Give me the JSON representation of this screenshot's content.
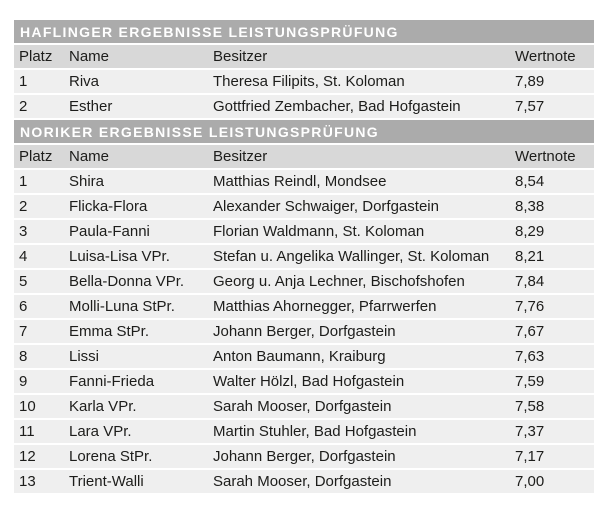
{
  "colors": {
    "section_header_bg": "#ababab",
    "section_header_text": "#ffffff",
    "column_header_bg": "#d8d8d8",
    "row_bg": "#efefef",
    "text": "#1d1d1b",
    "page_bg": "#ffffff"
  },
  "sections": [
    {
      "title": "HAFLINGER ERGEBNISSE LEISTUNGSPRÜFUNG",
      "columns": {
        "platz": "Platz",
        "name": "Name",
        "besitzer": "Besitzer",
        "wertnote": "Wertnote"
      },
      "rows": [
        {
          "platz": "1",
          "name": "Riva",
          "besitzer": "Theresa Filipits, St. Koloman",
          "wertnote": "7,89"
        },
        {
          "platz": "2",
          "name": "Esther",
          "besitzer": "Gottfried Zembacher, Bad Hofgastein",
          "wertnote": "7,57"
        }
      ]
    },
    {
      "title": "NORIKER ERGEBNISSE LEISTUNGSPRÜFUNG",
      "columns": {
        "platz": "Platz",
        "name": "Name",
        "besitzer": "Besitzer",
        "wertnote": "Wertnote"
      },
      "rows": [
        {
          "platz": "1",
          "name": "Shira",
          "besitzer": "Matthias Reindl, Mondsee",
          "wertnote": "8,54"
        },
        {
          "platz": "2",
          "name": "Flicka-Flora",
          "besitzer": "Alexander Schwaiger, Dorfgastein",
          "wertnote": "8,38"
        },
        {
          "platz": "3",
          "name": "Paula-Fanni",
          "besitzer": "Florian Waldmann, St. Koloman",
          "wertnote": "8,29"
        },
        {
          "platz": "4",
          "name": "Luisa-Lisa VPr.",
          "besitzer": "Stefan u. Angelika Wallinger, St. Koloman",
          "wertnote": "8,21"
        },
        {
          "platz": "5",
          "name": "Bella-Donna VPr.",
          "besitzer": "Georg u. Anja Lechner, Bischofshofen",
          "wertnote": "7,84"
        },
        {
          "platz": "6",
          "name": "Molli-Luna StPr.",
          "besitzer": "Matthias Ahornegger, Pfarrwerfen",
          "wertnote": "7,76"
        },
        {
          "platz": "7",
          "name": "Emma StPr.",
          "besitzer": "Johann Berger, Dorfgastein",
          "wertnote": "7,67"
        },
        {
          "platz": "8",
          "name": "Lissi",
          "besitzer": "Anton Baumann, Kraiburg",
          "wertnote": "7,63"
        },
        {
          "platz": "9",
          "name": "Fanni-Frieda",
          "besitzer": "Walter Hölzl, Bad Hofgastein",
          "wertnote": "7,59"
        },
        {
          "platz": "10",
          "name": "Karla VPr.",
          "besitzer": "Sarah Mooser, Dorfgastein",
          "wertnote": "7,58"
        },
        {
          "platz": "11",
          "name": "Lara VPr.",
          "besitzer": "Martin Stuhler, Bad Hofgastein",
          "wertnote": "7,37"
        },
        {
          "platz": "12",
          "name": "Lorena StPr.",
          "besitzer": "Johann Berger, Dorfgastein",
          "wertnote": "7,17"
        },
        {
          "platz": "13",
          "name": "Trient-Walli",
          "besitzer": "Sarah Mooser, Dorfgastein",
          "wertnote": "7,00"
        }
      ]
    }
  ]
}
